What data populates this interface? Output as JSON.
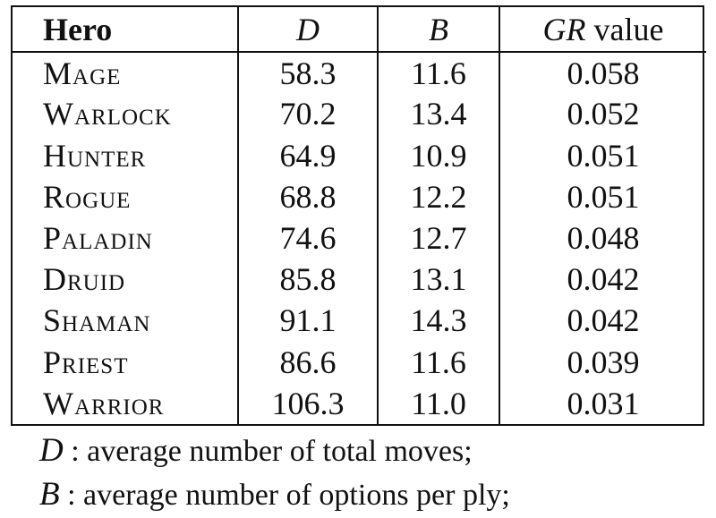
{
  "table": {
    "headers": {
      "hero": "Hero",
      "d": "D",
      "b": "B",
      "gr_symbol": "GR",
      "gr_suffix": "value"
    },
    "rows": [
      {
        "hero": "Mage",
        "d": "58.3",
        "b": "11.6",
        "gr": "0.058"
      },
      {
        "hero": "Warlock",
        "d": "70.2",
        "b": "13.4",
        "gr": "0.052"
      },
      {
        "hero": "Hunter",
        "d": "64.9",
        "b": "10.9",
        "gr": "0.051"
      },
      {
        "hero": "Rogue",
        "d": "68.8",
        "b": "12.2",
        "gr": "0.051"
      },
      {
        "hero": "Paladin",
        "d": "74.6",
        "b": "12.7",
        "gr": "0.048"
      },
      {
        "hero": "Druid",
        "d": "85.8",
        "b": "13.1",
        "gr": "0.042"
      },
      {
        "hero": "Shaman",
        "d": "91.1",
        "b": "14.3",
        "gr": "0.042"
      },
      {
        "hero": "Priest",
        "d": "86.6",
        "b": "11.6",
        "gr": "0.039"
      },
      {
        "hero": "Warrior",
        "d": "106.3",
        "b": "11.0",
        "gr": "0.031"
      }
    ]
  },
  "notes": [
    {
      "symbol": "D",
      "text": ": average number of total moves;"
    },
    {
      "symbol": "B",
      "text": ": average number of options per ply;"
    }
  ]
}
